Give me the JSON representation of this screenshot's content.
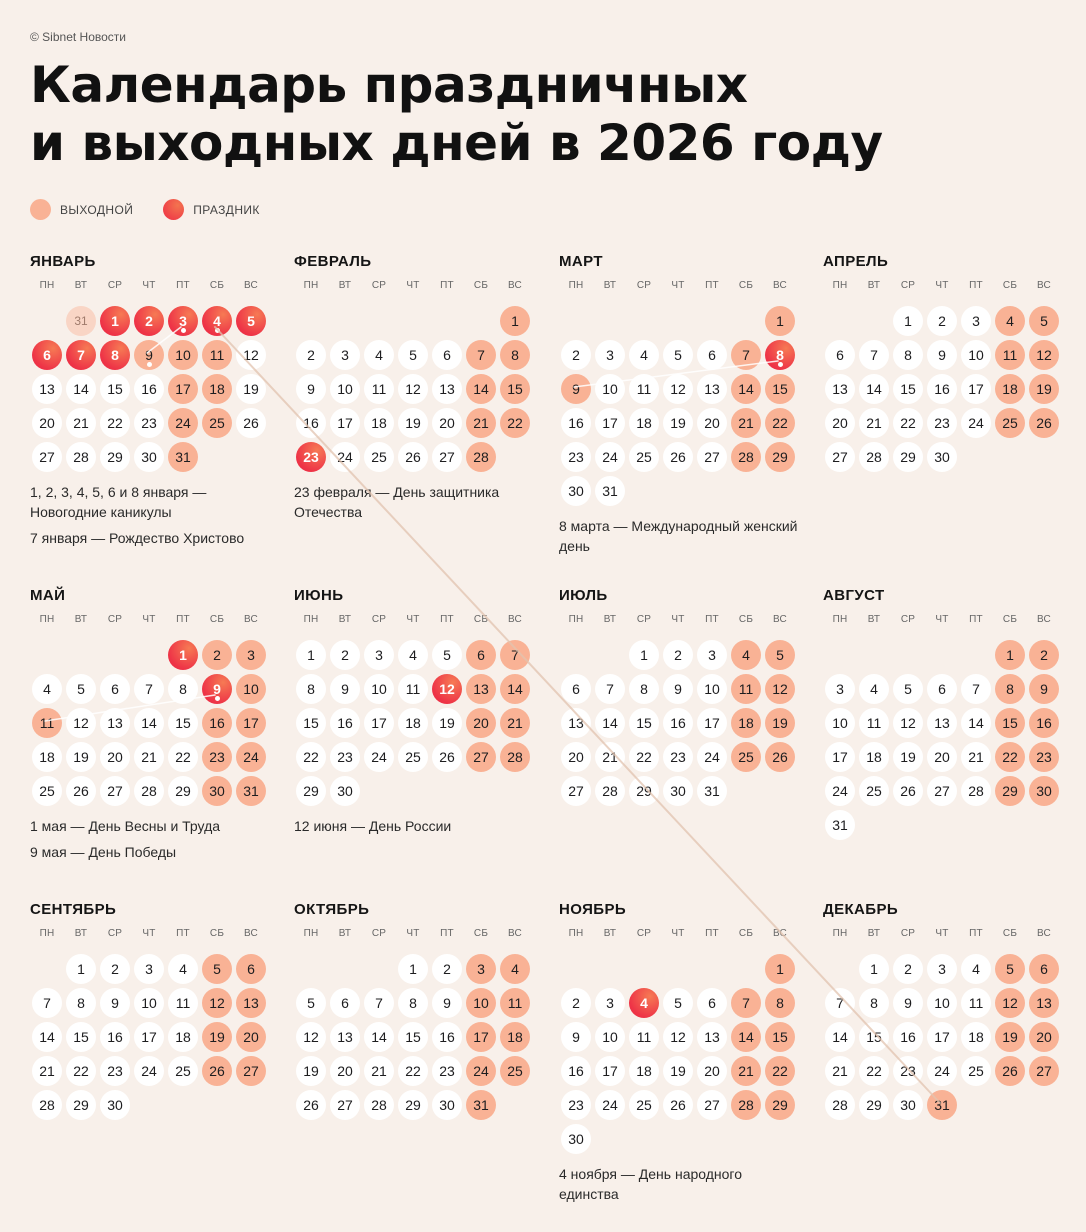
{
  "copyright": "© Sibnet Новости",
  "title": [
    "Календарь праздничных",
    "и выходных дней в 2026 году"
  ],
  "legend": {
    "weekend": "ВЫХОДНОЙ",
    "holiday": "ПРАЗДНИК"
  },
  "weekdays": [
    "ПН",
    "ВТ",
    "СР",
    "ЧТ",
    "ПТ",
    "СБ",
    "ВС"
  ],
  "colors": {
    "background": "#f8f0ea",
    "weekend": "#f9b295",
    "holiday_start": "#f3744f",
    "holiday_end": "#ee2d45"
  },
  "months": [
    {
      "name": "ЯНВАРЬ",
      "offset": 2,
      "prev_day": "31",
      "days": 31,
      "weekends": [
        3,
        4,
        5,
        6,
        7,
        8,
        9,
        10,
        11,
        17,
        18,
        24,
        25,
        31
      ],
      "holidays": [
        1,
        2,
        3,
        4,
        5,
        6,
        7,
        8
      ],
      "marked": [
        3,
        4,
        9
      ],
      "notes": [
        "1, 2, 3, 4, 5, 6 и 8 января — Новогодние каникулы",
        "7 января — Рождество Христово"
      ]
    },
    {
      "name": "ФЕВРАЛЬ",
      "offset": 6,
      "days": 28,
      "weekends": [
        1,
        7,
        8,
        14,
        15,
        21,
        22,
        28
      ],
      "holidays": [
        23
      ],
      "marked": [],
      "notes": [
        "23 февраля — День защитника Отечества"
      ]
    },
    {
      "name": "МАРТ",
      "offset": 6,
      "days": 31,
      "weekends": [
        1,
        7,
        8,
        9,
        14,
        15,
        21,
        22,
        28,
        29
      ],
      "holidays": [
        8
      ],
      "marked": [
        8
      ],
      "notes": [
        "8 марта — Международный женский день"
      ]
    },
    {
      "name": "АПРЕЛЬ",
      "offset": 2,
      "days": 30,
      "weekends": [
        4,
        5,
        11,
        12,
        18,
        19,
        25,
        26
      ],
      "holidays": [],
      "marked": [],
      "notes": []
    },
    {
      "name": "МАЙ",
      "offset": 4,
      "days": 31,
      "weekends": [
        2,
        3,
        9,
        10,
        11,
        16,
        17,
        23,
        24,
        30,
        31
      ],
      "holidays": [
        1,
        9
      ],
      "marked": [
        9
      ],
      "notes": [
        "1 мая — День Весны и Труда",
        "9 мая — День Победы"
      ]
    },
    {
      "name": "ИЮНЬ",
      "offset": 0,
      "days": 30,
      "weekends": [
        6,
        7,
        13,
        14,
        20,
        21,
        27,
        28
      ],
      "holidays": [
        12
      ],
      "marked": [],
      "notes": [
        "12 июня — День России"
      ]
    },
    {
      "name": "ИЮЛЬ",
      "offset": 2,
      "days": 31,
      "weekends": [
        4,
        5,
        11,
        12,
        18,
        19,
        25,
        26
      ],
      "holidays": [],
      "marked": [],
      "notes": []
    },
    {
      "name": "АВГУСТ",
      "offset": 5,
      "days": 31,
      "weekends": [
        1,
        2,
        8,
        9,
        15,
        16,
        22,
        23,
        29,
        30
      ],
      "holidays": [],
      "marked": [],
      "notes": []
    },
    {
      "name": "СЕНТЯБРЬ",
      "offset": 1,
      "days": 30,
      "weekends": [
        5,
        6,
        12,
        13,
        19,
        20,
        26,
        27
      ],
      "holidays": [],
      "marked": [],
      "notes": []
    },
    {
      "name": "ОКТЯБРЬ",
      "offset": 3,
      "days": 31,
      "weekends": [
        3,
        4,
        10,
        11,
        17,
        18,
        24,
        25,
        31
      ],
      "holidays": [],
      "marked": [],
      "notes": []
    },
    {
      "name": "НОЯБРЬ",
      "offset": 6,
      "days": 30,
      "weekends": [
        1,
        7,
        8,
        14,
        15,
        21,
        22,
        28,
        29
      ],
      "holidays": [
        4
      ],
      "marked": [],
      "notes": [
        "4 ноября — День народного единства"
      ]
    },
    {
      "name": "ДЕКАБРЬ",
      "offset": 1,
      "days": 31,
      "weekends": [
        5,
        6,
        12,
        13,
        19,
        20,
        26,
        27,
        31
      ],
      "holidays": [],
      "marked": [],
      "notes": []
    }
  ]
}
